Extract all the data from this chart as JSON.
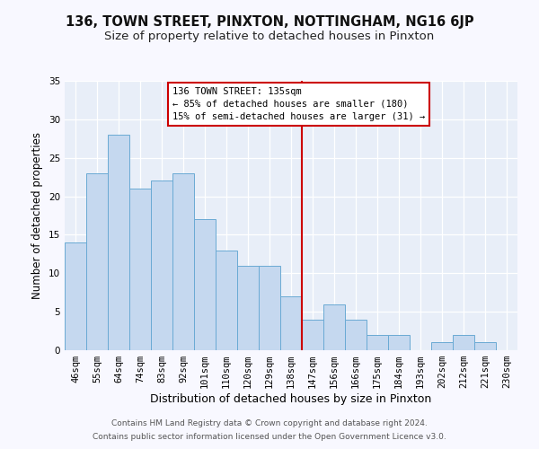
{
  "title": "136, TOWN STREET, PINXTON, NOTTINGHAM, NG16 6JP",
  "subtitle": "Size of property relative to detached houses in Pinxton",
  "xlabel": "Distribution of detached houses by size in Pinxton",
  "ylabel": "Number of detached properties",
  "bar_labels": [
    "46sqm",
    "55sqm",
    "64sqm",
    "74sqm",
    "83sqm",
    "92sqm",
    "101sqm",
    "110sqm",
    "120sqm",
    "129sqm",
    "138sqm",
    "147sqm",
    "156sqm",
    "166sqm",
    "175sqm",
    "184sqm",
    "193sqm",
    "202sqm",
    "212sqm",
    "221sqm",
    "230sqm"
  ],
  "bar_values": [
    14,
    23,
    28,
    21,
    22,
    23,
    17,
    13,
    11,
    11,
    7,
    4,
    6,
    4,
    2,
    2,
    0,
    1,
    2,
    1,
    0
  ],
  "bar_color": "#c5d8ef",
  "bar_edge_color": "#6aaad4",
  "fig_facecolor": "#f8f8ff",
  "axes_facecolor": "#e8eef8",
  "vline_x": 10.5,
  "vline_color": "#cc0000",
  "annotation_title": "136 TOWN STREET: 135sqm",
  "annotation_line1": "← 85% of detached houses are smaller (180)",
  "annotation_line2": "15% of semi-detached houses are larger (31) →",
  "annotation_box_edge_color": "#cc0000",
  "annotation_box_fill": "#ffffff",
  "ylim": [
    0,
    35
  ],
  "yticks": [
    0,
    5,
    10,
    15,
    20,
    25,
    30,
    35
  ],
  "footer_line1": "Contains HM Land Registry data © Crown copyright and database right 2024.",
  "footer_line2": "Contains public sector information licensed under the Open Government Licence v3.0.",
  "title_fontsize": 10.5,
  "subtitle_fontsize": 9.5,
  "xlabel_fontsize": 9,
  "ylabel_fontsize": 8.5,
  "tick_fontsize": 7.5,
  "annot_fontsize": 7.5,
  "footer_fontsize": 6.5
}
